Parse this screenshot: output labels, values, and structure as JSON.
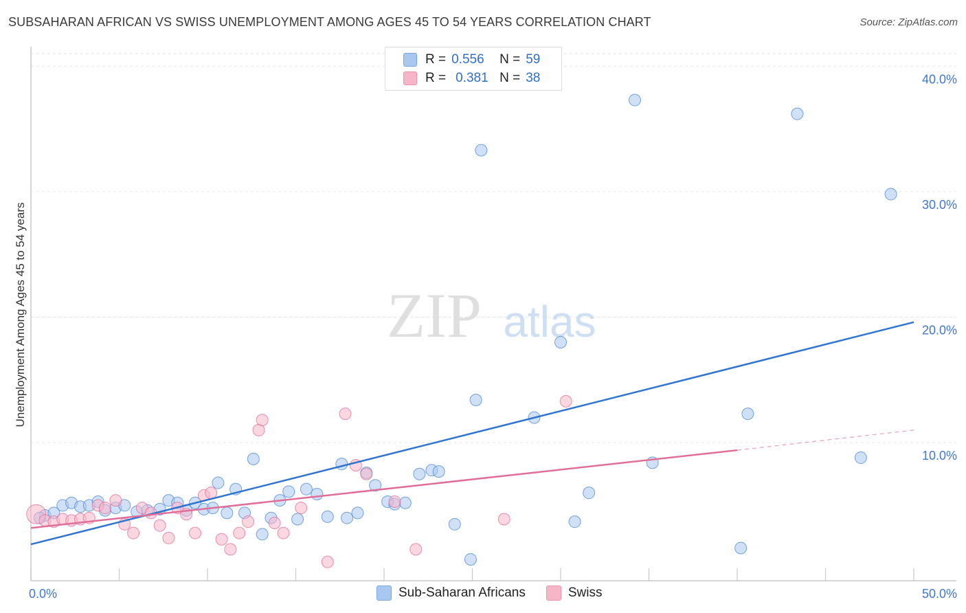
{
  "title": "SUBSAHARAN AFRICAN VS SWISS UNEMPLOYMENT AMONG AGES 45 TO 54 YEARS CORRELATION CHART",
  "source": "Source: ZipAtlas.com",
  "watermark": {
    "zip": "ZIP",
    "atlas": "atlas"
  },
  "legend_top": [
    {
      "r_label": "R =",
      "r_value": "0.556",
      "n_label": "N =",
      "n_value": "59",
      "color": "#a9c8f0"
    },
    {
      "r_label": "R =",
      "r_value": "0.381",
      "n_label": "N =",
      "n_value": "38",
      "color": "#f7b6c8"
    }
  ],
  "legend_bottom": [
    {
      "label": "Sub-Saharan Africans",
      "color": "#a9c8f0"
    },
    {
      "label": "Swiss",
      "color": "#f7b6c8"
    }
  ],
  "chart_data": {
    "type": "scatter",
    "ylabel": "Unemployment Among Ages 45 to 54 years",
    "xlabel": "",
    "xlim": [
      0,
      50
    ],
    "ylim": [
      -1,
      41
    ],
    "x_tick_labels": [
      "0.0%",
      "50.0%"
    ],
    "y_tick_labels": [
      "10.0%",
      "20.0%",
      "30.0%",
      "40.0%"
    ],
    "y_ticks": [
      10,
      20,
      30,
      40
    ],
    "series": [
      {
        "name": "Sub-Saharan Africans",
        "color": "#4a86d6",
        "fill": "#a9c8f0",
        "trend": {
          "x": [
            0,
            50
          ],
          "y": [
            1.9,
            19.6
          ]
        },
        "points": [
          [
            0.8,
            4.2
          ],
          [
            1.3,
            4.4
          ],
          [
            1.8,
            5.0
          ],
          [
            2.3,
            5.2
          ],
          [
            2.8,
            4.9
          ],
          [
            3.3,
            5.0
          ],
          [
            3.8,
            5.3
          ],
          [
            4.2,
            4.6
          ],
          [
            4.8,
            4.8
          ],
          [
            5.3,
            5.0
          ],
          [
            6.0,
            4.5
          ],
          [
            6.6,
            4.6
          ],
          [
            7.3,
            4.7
          ],
          [
            7.8,
            5.4
          ],
          [
            8.3,
            5.2
          ],
          [
            8.8,
            4.6
          ],
          [
            9.3,
            5.2
          ],
          [
            9.8,
            4.7
          ],
          [
            10.3,
            4.8
          ],
          [
            10.6,
            6.8
          ],
          [
            11.1,
            4.4
          ],
          [
            11.6,
            6.3
          ],
          [
            12.1,
            4.4
          ],
          [
            12.6,
            8.7
          ],
          [
            13.1,
            2.7
          ],
          [
            13.6,
            4.0
          ],
          [
            14.1,
            5.4
          ],
          [
            14.6,
            6.1
          ],
          [
            15.1,
            3.9
          ],
          [
            15.6,
            6.3
          ],
          [
            16.2,
            5.9
          ],
          [
            16.8,
            4.1
          ],
          [
            17.6,
            8.3
          ],
          [
            17.9,
            4.0
          ],
          [
            18.5,
            4.4
          ],
          [
            19.0,
            7.6
          ],
          [
            19.5,
            6.6
          ],
          [
            20.2,
            5.3
          ],
          [
            20.6,
            5.1
          ],
          [
            21.2,
            5.2
          ],
          [
            22.0,
            7.5
          ],
          [
            22.7,
            7.8
          ],
          [
            23.1,
            7.7
          ],
          [
            24.0,
            3.5
          ],
          [
            24.9,
            0.7
          ],
          [
            25.2,
            13.4
          ],
          [
            25.5,
            33.3
          ],
          [
            28.5,
            12.0
          ],
          [
            30.0,
            18.0
          ],
          [
            30.8,
            3.7
          ],
          [
            31.6,
            6.0
          ],
          [
            34.2,
            37.3
          ],
          [
            35.2,
            8.4
          ],
          [
            40.2,
            1.6
          ],
          [
            40.6,
            12.3
          ],
          [
            43.4,
            36.2
          ],
          [
            47.0,
            8.8
          ],
          [
            48.7,
            29.8
          ],
          [
            0.5,
            4.0
          ]
        ]
      },
      {
        "name": "Swiss",
        "color": "#e06e98",
        "fill": "#f7b6c8",
        "trend": {
          "x": [
            0,
            40
          ],
          "y": [
            3.2,
            9.4
          ]
        },
        "trend_dashed": {
          "x": [
            40,
            50
          ],
          "y": [
            9.4,
            11.0
          ]
        },
        "points": [
          [
            0.3,
            4.3
          ],
          [
            0.8,
            3.8
          ],
          [
            1.3,
            3.7
          ],
          [
            1.8,
            3.9
          ],
          [
            2.3,
            3.8
          ],
          [
            2.8,
            3.9
          ],
          [
            3.3,
            4.0
          ],
          [
            3.8,
            5.0
          ],
          [
            4.2,
            4.8
          ],
          [
            4.8,
            5.4
          ],
          [
            5.3,
            3.5
          ],
          [
            5.8,
            2.8
          ],
          [
            6.3,
            4.8
          ],
          [
            6.8,
            4.4
          ],
          [
            7.3,
            3.4
          ],
          [
            7.8,
            2.4
          ],
          [
            8.3,
            4.8
          ],
          [
            8.8,
            4.3
          ],
          [
            9.3,
            2.8
          ],
          [
            9.8,
            5.8
          ],
          [
            10.2,
            6.0
          ],
          [
            10.8,
            2.3
          ],
          [
            11.3,
            1.5
          ],
          [
            11.8,
            2.8
          ],
          [
            12.3,
            3.7
          ],
          [
            12.9,
            11.0
          ],
          [
            13.1,
            11.8
          ],
          [
            13.8,
            3.6
          ],
          [
            14.3,
            2.8
          ],
          [
            15.3,
            4.8
          ],
          [
            16.8,
            0.5
          ],
          [
            17.8,
            12.3
          ],
          [
            18.4,
            8.2
          ],
          [
            19.0,
            7.5
          ],
          [
            20.6,
            5.3
          ],
          [
            21.8,
            1.5
          ],
          [
            26.8,
            3.9
          ],
          [
            30.3,
            13.3
          ]
        ]
      }
    ]
  }
}
